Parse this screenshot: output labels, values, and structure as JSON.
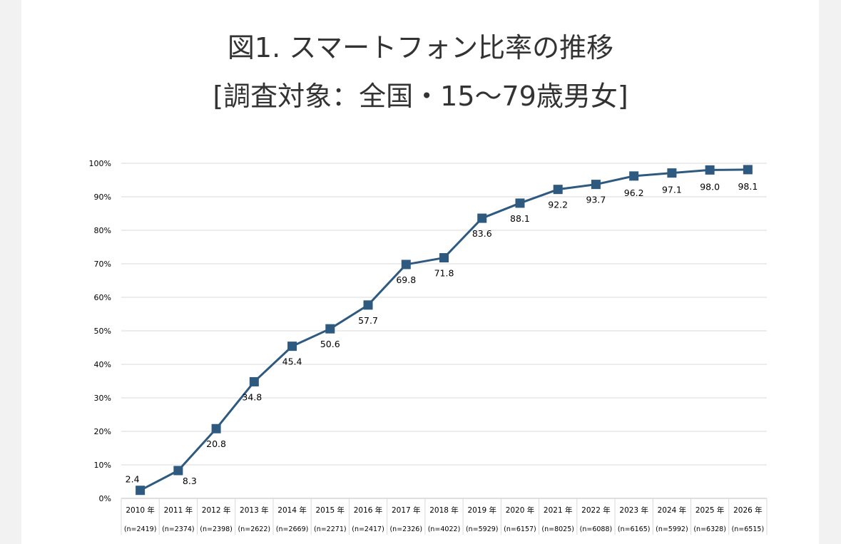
{
  "title_line1": "図1. スマートフォン比率の推移",
  "title_line2": "[調査対象：全国・15～79歳男女]",
  "chart_data": {
    "type": "line",
    "title": "図1. スマートフォン比率の推移 [調査対象：全国・15～79歳男女]",
    "categories": [
      "2010 年",
      "2011 年",
      "2012 年",
      "2013 年",
      "2014 年",
      "2015 年",
      "2016 年",
      "2017 年",
      "2018 年",
      "2019 年",
      "2020 年",
      "2021 年",
      "2022 年",
      "2023 年",
      "2024 年",
      "2025 年",
      "2026 年"
    ],
    "sample_sizes": [
      "(n=2419)",
      "(n=2374)",
      "(n=2398)",
      "(n=2622)",
      "(n=2669)",
      "(n=2271)",
      "(n=2417)",
      "(n=2326)",
      "(n=4022)",
      "(n=5929)",
      "(n=6157)",
      "(n=8025)",
      "(n=6088)",
      "(n=6165)",
      "(n=5992)",
      "(n=6328)",
      "(n=6515)"
    ],
    "values": [
      2.4,
      8.3,
      20.8,
      34.8,
      45.4,
      50.6,
      57.7,
      69.8,
      71.8,
      83.6,
      88.1,
      92.2,
      93.7,
      96.2,
      97.1,
      98.0,
      98.1
    ],
    "data_labels": [
      "2.4",
      "8.3",
      "20.8",
      "34.8",
      "45.4",
      "50.6",
      "57.7",
      "69.8",
      "71.8",
      "83.6",
      "88.1",
      "92.2",
      "93.7",
      "96.2",
      "97.1",
      "98.0",
      "98.1"
    ],
    "ylim": [
      0,
      100
    ],
    "yticks": [
      "0%",
      "10%",
      "20%",
      "30%",
      "40%",
      "50%",
      "60%",
      "70%",
      "80%",
      "90%",
      "100%"
    ],
    "grid": true,
    "legend": "none",
    "series_color": "#2e5a80",
    "marker": "square"
  }
}
